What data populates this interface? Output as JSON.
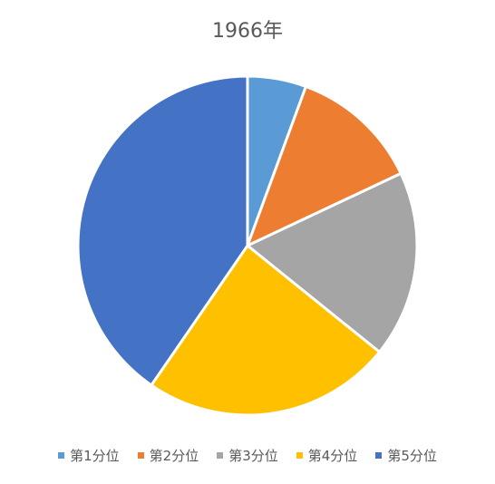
{
  "chart_data": {
    "type": "pie",
    "title": "1966年",
    "categories": [
      "第1分位",
      "第2分位",
      "第3分位",
      "第4分位",
      "第5分位"
    ],
    "values": [
      5.6,
      12.4,
      17.8,
      23.8,
      40.4
    ],
    "colors": [
      "#5B9BD5",
      "#ED7D31",
      "#A5A5A5",
      "#FFC000",
      "#4472C4"
    ],
    "start_angle": "12 o'clock, clockwise",
    "legend": "bottom"
  }
}
